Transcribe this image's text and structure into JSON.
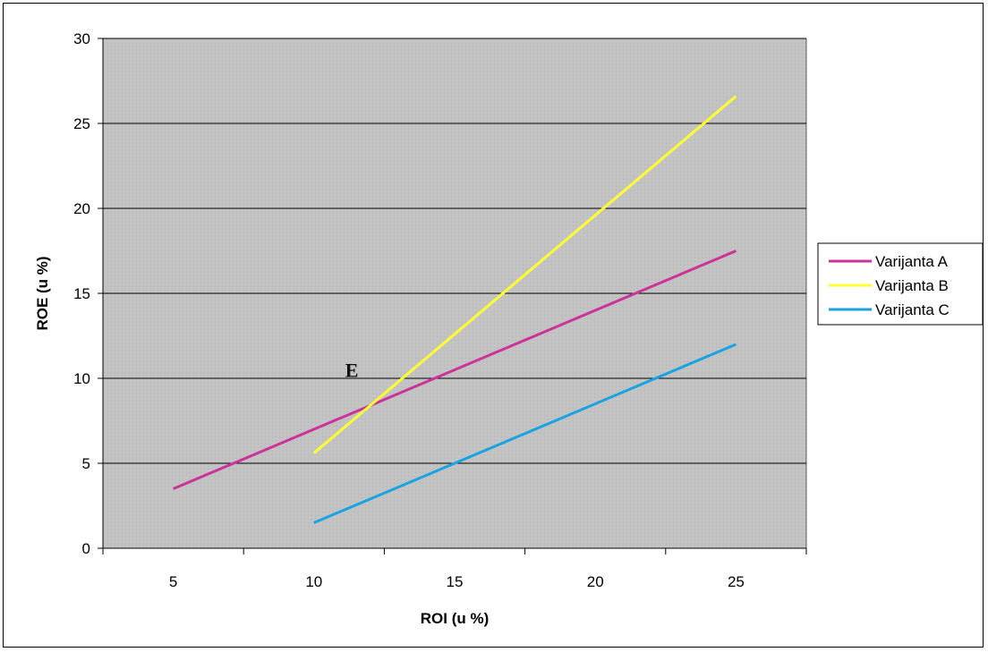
{
  "chart_data": {
    "type": "line",
    "title": "",
    "xlabel": "ROI (u %)",
    "ylabel": "ROE (u %)",
    "x_categories": [
      "5",
      "10",
      "15",
      "20",
      "25"
    ],
    "ylim": [
      0,
      30
    ],
    "yticks": [
      0,
      5,
      10,
      15,
      20,
      25,
      30
    ],
    "grid": true,
    "plot_background": "#c0c0c0",
    "legend_position": "right",
    "series": [
      {
        "name": "Varijanta A",
        "color": "#cc3399",
        "x": [
          5,
          25
        ],
        "y": [
          3.5,
          17.5
        ]
      },
      {
        "name": "Varijanta B",
        "color": "#ffff33",
        "x": [
          10,
          25
        ],
        "y": [
          5.6,
          26.6
        ]
      },
      {
        "name": "Varijanta C",
        "color": "#1aa3e0",
        "x": [
          10,
          25
        ],
        "y": [
          1.5,
          12
        ]
      }
    ],
    "annotations": [
      {
        "text": "E",
        "x": 11.6,
        "y": 10.5
      }
    ]
  }
}
